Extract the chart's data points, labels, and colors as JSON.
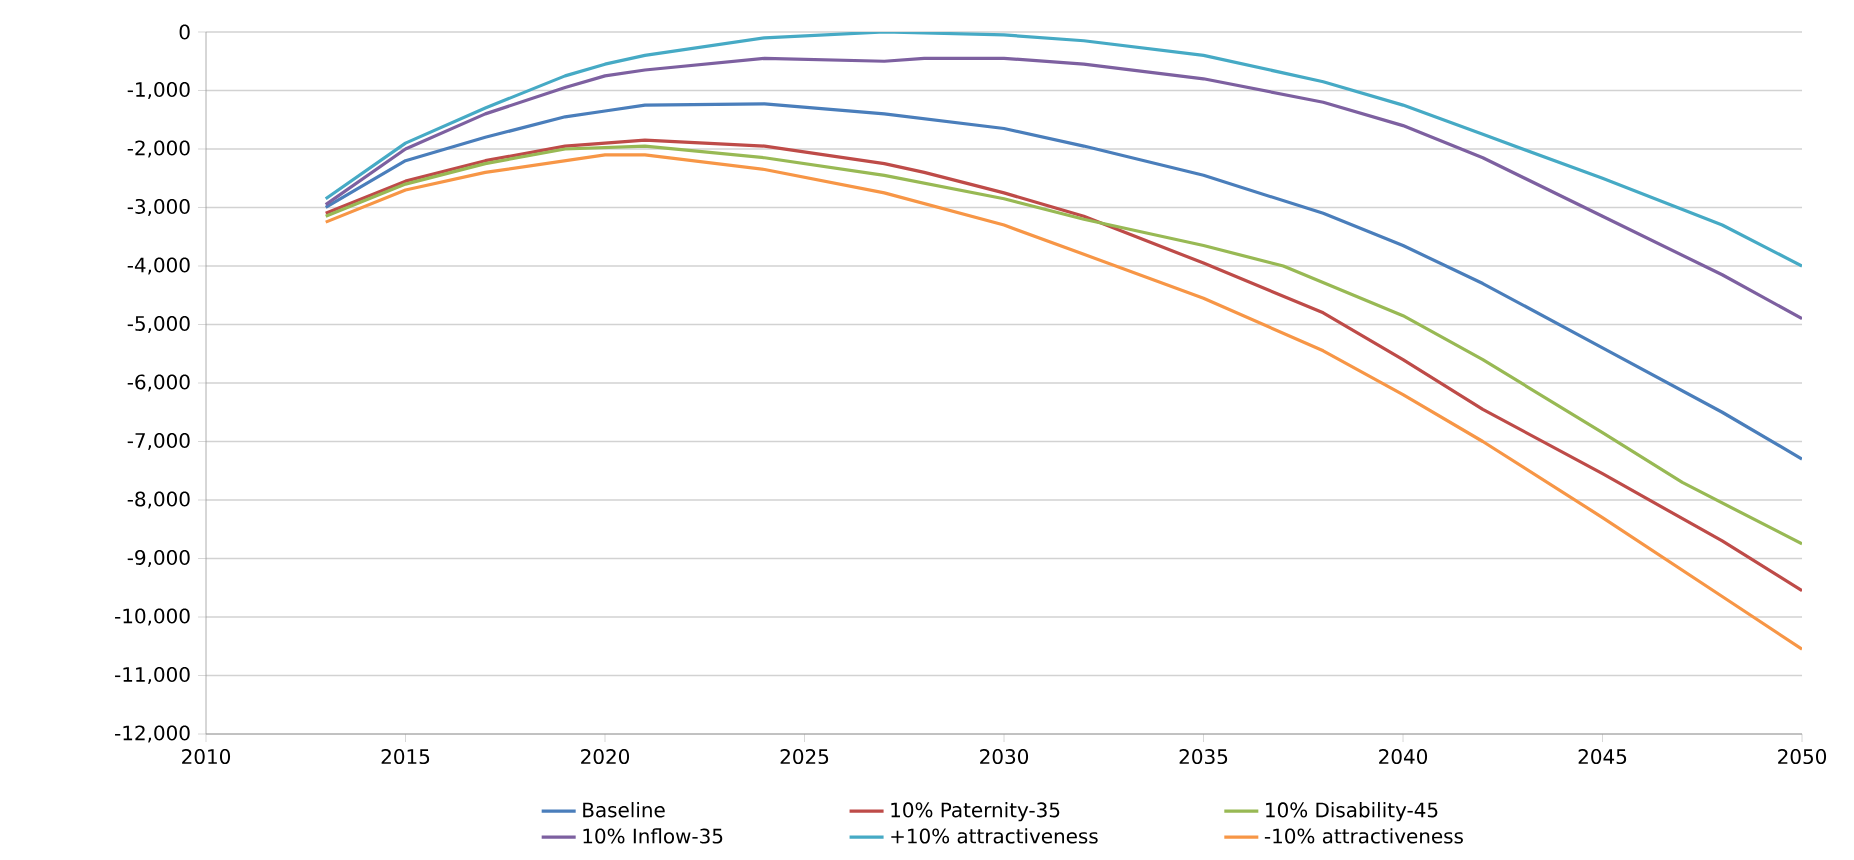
{
  "chart_data": {
    "type": "line",
    "xlim": [
      2010,
      2050
    ],
    "xticks": [
      2010,
      2015,
      2020,
      2025,
      2030,
      2035,
      2040,
      2045,
      2050
    ],
    "ylim": [
      -12000,
      0
    ],
    "yticks": [
      {
        "value": -12000,
        "label": "-12,000"
      },
      {
        "value": -11000,
        "label": "-11,000"
      },
      {
        "value": -10000,
        "label": "-10,000"
      },
      {
        "value": -9000,
        "label": "-9,000"
      },
      {
        "value": -8000,
        "label": "-8,000"
      },
      {
        "value": -7000,
        "label": "-7,000"
      },
      {
        "value": -6000,
        "label": "-6,000"
      },
      {
        "value": -5000,
        "label": "-5,000"
      },
      {
        "value": -4000,
        "label": "-4,000"
      },
      {
        "value": -3000,
        "label": "-3,000"
      },
      {
        "value": -2000,
        "label": "-2,000"
      },
      {
        "value": -1000,
        "label": "-1,000"
      },
      0
    ],
    "grid": "y",
    "legend": "bottom",
    "marker": "none",
    "line_style": "solid",
    "series": [
      {
        "name": "Baseline",
        "color": "#4a7ebb",
        "x": [
          2013,
          2015,
          2017,
          2019,
          2020,
          2021,
          2024,
          2027,
          2030,
          2032,
          2035,
          2038,
          2040,
          2042,
          2045,
          2048,
          2050
        ],
        "values": [
          -3000,
          -2200,
          -1800,
          -1450,
          -1350,
          -1250,
          -1230,
          -1400,
          -1650,
          -1950,
          -2450,
          -3100,
          -3650,
          -4300,
          -5400,
          -6500,
          -7300
        ]
      },
      {
        "name": "10% Paternity-35",
        "color": "#be4b48",
        "x": [
          2013,
          2015,
          2017,
          2019,
          2021,
          2024,
          2027,
          2028,
          2030,
          2032,
          2035,
          2038,
          2040,
          2042,
          2045,
          2048,
          2050
        ],
        "values": [
          -3100,
          -2550,
          -2200,
          -1950,
          -1850,
          -1950,
          -2250,
          -2400,
          -2750,
          -3150,
          -3950,
          -4800,
          -5600,
          -6450,
          -7550,
          -8700,
          -9550
        ]
      },
      {
        "name": "10% Disability-45",
        "color": "#98b954",
        "x": [
          2013,
          2015,
          2017,
          2019,
          2021,
          2024,
          2027,
          2030,
          2032,
          2035,
          2037,
          2040,
          2042,
          2045,
          2047,
          2050
        ],
        "values": [
          -3150,
          -2600,
          -2250,
          -2000,
          -1950,
          -2150,
          -2450,
          -2850,
          -3200,
          -3650,
          -4000,
          -4850,
          -5600,
          -6850,
          -7700,
          -8750
        ]
      },
      {
        "name": "10% Inflow-35",
        "color": "#7d60a0",
        "x": [
          2013,
          2015,
          2017,
          2019,
          2020,
          2021,
          2024,
          2027,
          2028,
          2030,
          2032,
          2035,
          2038,
          2040,
          2042,
          2045,
          2048,
          2050
        ],
        "values": [
          -2950,
          -2000,
          -1400,
          -950,
          -750,
          -650,
          -450,
          -500,
          -450,
          -450,
          -550,
          -800,
          -1200,
          -1600,
          -2150,
          -3150,
          -4150,
          -4900
        ]
      },
      {
        "name": "+10% attractiveness",
        "color": "#46aac5",
        "x": [
          2013,
          2015,
          2017,
          2019,
          2020,
          2021,
          2024,
          2027,
          2030,
          2032,
          2035,
          2038,
          2040,
          2042,
          2045,
          2048,
          2050
        ],
        "values": [
          -2850,
          -1900,
          -1300,
          -750,
          -550,
          -400,
          -100,
          0,
          -50,
          -150,
          -400,
          -850,
          -1250,
          -1750,
          -2500,
          -3300,
          -4000
        ]
      },
      {
        "name": "-10% attractiveness",
        "color": "#f79646",
        "x": [
          2013,
          2015,
          2017,
          2019,
          2020,
          2021,
          2024,
          2027,
          2030,
          2032,
          2035,
          2038,
          2040,
          2042,
          2045,
          2048,
          2050
        ],
        "values": [
          -3250,
          -2700,
          -2400,
          -2200,
          -2100,
          -2100,
          -2350,
          -2750,
          -3300,
          -3800,
          -4550,
          -5450,
          -6200,
          -7000,
          -8300,
          -9650,
          -10550
        ]
      }
    ]
  }
}
